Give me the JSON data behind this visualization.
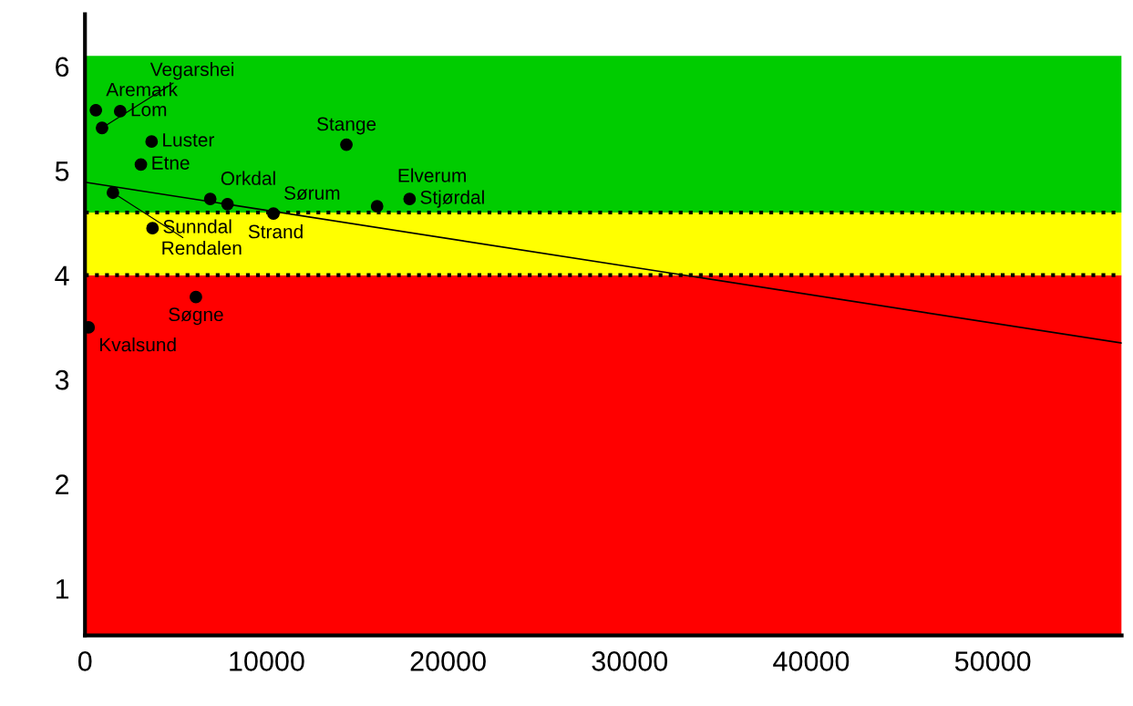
{
  "chart_data": {
    "type": "scatter",
    "xlim": [
      0,
      57100
    ],
    "ylim": [
      0.55,
      6.5
    ],
    "xticks": [
      0,
      10000,
      20000,
      30000,
      40000,
      50000
    ],
    "yticks": [
      1,
      2,
      3,
      4,
      5,
      6
    ],
    "grid": false,
    "legend": false,
    "series": [
      {
        "color": "#000000",
        "marker": "circle",
        "x": [
          600,
          1940,
          940,
          3670,
          3080,
          1540,
          6900,
          7850,
          10380,
          3720,
          14400,
          16090,
          17880,
          6110,
          200
        ],
        "values": [
          5.58,
          5.57,
          5.41,
          5.28,
          5.06,
          4.79,
          4.73,
          4.68,
          4.59,
          4.45,
          5.25,
          4.66,
          4.73,
          3.79,
          3.5
        ]
      },
      {
        "type": "line",
        "color": "#000000",
        "marker": "none",
        "x": [
          0,
          57100
        ],
        "values": [
          4.89,
          3.35
        ]
      }
    ],
    "bands": [
      {
        "axis": "y",
        "from": 0.55,
        "to": 4.0,
        "color": "#ff0000"
      },
      {
        "axis": "y",
        "from": 4.0,
        "to": 4.6,
        "color": "#ffff00"
      },
      {
        "axis": "y",
        "from": 4.6,
        "to": 6.1,
        "color": "#00cc00"
      }
    ],
    "ref_lines": [
      {
        "axis": "y",
        "value": 4.0,
        "color": "#000000",
        "line_style": "dotted"
      },
      {
        "axis": "y",
        "value": 4.6,
        "color": "#000000",
        "line_style": "dotted"
      }
    ],
    "annotations": [
      {
        "text": "Aremark",
        "x": 600,
        "y": 5.58
      },
      {
        "text": "Lom",
        "x": 1940,
        "y": 5.57
      },
      {
        "text": "Vegarshei",
        "x": 940,
        "y": 5.41
      },
      {
        "text": "Luster",
        "x": 3670,
        "y": 5.28
      },
      {
        "text": "Etne",
        "x": 3080,
        "y": 5.06
      },
      {
        "text": "Rendalen",
        "x": 1540,
        "y": 4.79
      },
      {
        "text": "Orkdal",
        "x": 6900,
        "y": 4.73
      },
      {
        "text": "Strand",
        "x": 7850,
        "y": 4.68
      },
      {
        "text": "Sørum",
        "x": 10380,
        "y": 4.59
      },
      {
        "text": "Sunndal",
        "x": 3720,
        "y": 4.45
      },
      {
        "text": "Stange",
        "x": 14400,
        "y": 5.25
      },
      {
        "text": "Elverum",
        "x": 16090,
        "y": 4.66
      },
      {
        "text": "Stjørdal",
        "x": 17880,
        "y": 4.73
      },
      {
        "text": "Søgne",
        "x": 6110,
        "y": 3.79
      },
      {
        "text": "Kvalsund",
        "x": 200,
        "y": 3.5
      }
    ]
  }
}
